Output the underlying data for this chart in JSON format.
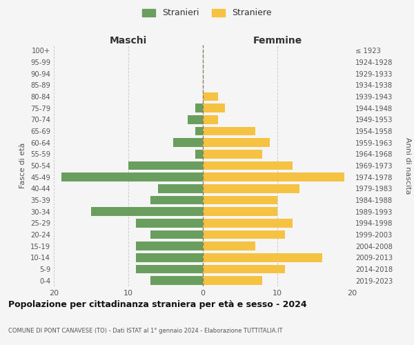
{
  "age_groups": [
    "0-4",
    "5-9",
    "10-14",
    "15-19",
    "20-24",
    "25-29",
    "30-34",
    "35-39",
    "40-44",
    "45-49",
    "50-54",
    "55-59",
    "60-64",
    "65-69",
    "70-74",
    "75-79",
    "80-84",
    "85-89",
    "90-94",
    "95-99",
    "100+"
  ],
  "birth_years": [
    "2019-2023",
    "2014-2018",
    "2009-2013",
    "2004-2008",
    "1999-2003",
    "1994-1998",
    "1989-1993",
    "1984-1988",
    "1979-1983",
    "1974-1978",
    "1969-1973",
    "1964-1968",
    "1959-1963",
    "1954-1958",
    "1949-1953",
    "1944-1948",
    "1939-1943",
    "1934-1938",
    "1929-1933",
    "1924-1928",
    "≤ 1923"
  ],
  "maschi": [
    7,
    9,
    9,
    9,
    7,
    9,
    15,
    7,
    6,
    19,
    10,
    1,
    4,
    1,
    2,
    1,
    0,
    0,
    0,
    0,
    0
  ],
  "femmine": [
    8,
    11,
    16,
    7,
    11,
    12,
    10,
    10,
    13,
    19,
    12,
    8,
    9,
    7,
    2,
    3,
    2,
    0,
    0,
    0,
    0
  ],
  "color_maschi": "#6a9e5e",
  "color_femmine": "#f5c242",
  "title": "Popolazione per cittadinanza straniera per età e sesso - 2024",
  "subtitle": "COMUNE DI PONT CANAVESE (TO) - Dati ISTAT al 1° gennaio 2024 - Elaborazione TUTTITALIA.IT",
  "label_maschi": "Maschi",
  "label_femmine": "Femmine",
  "ylabel_left": "Fasce di età",
  "ylabel_right": "Anni di nascita",
  "legend_maschi": "Stranieri",
  "legend_femmine": "Straniere",
  "xlim": 20,
  "bg_color": "#f5f5f5",
  "grid_color": "#cccccc"
}
